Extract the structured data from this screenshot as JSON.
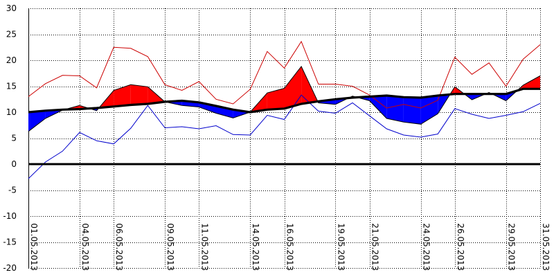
{
  "chart_data": {
    "type": "area",
    "title": "",
    "xlabel": "",
    "ylabel": "",
    "ylim": [
      -20,
      30
    ],
    "y_ticks": [
      -20,
      -15,
      -10,
      -5,
      0,
      5,
      10,
      15,
      20,
      25,
      30
    ],
    "grid": true,
    "zero_line": true,
    "x_tick_labels": [
      "01.05.2013",
      "04.05.2013",
      "06.05.2013",
      "09.05.2013",
      "11.05.2013",
      "14.05.2013",
      "16.05.2013",
      "19.05.2013",
      "21.05.2013",
      "24.05.2013",
      "26.05.2013",
      "29.05.2013",
      "31.05.2013"
    ],
    "x_tick_days": [
      1,
      4,
      6,
      9,
      11,
      14,
      16,
      19,
      21,
      24,
      26,
      29,
      31
    ],
    "days": [
      1,
      2,
      3,
      4,
      5,
      6,
      7,
      8,
      9,
      10,
      11,
      12,
      13,
      14,
      15,
      16,
      17,
      18,
      19,
      20,
      21,
      22,
      23,
      24,
      25,
      26,
      27,
      28,
      29,
      30,
      31
    ],
    "series": [
      {
        "role": "mean",
        "values": [
          6.3,
          8.8,
          10.4,
          11.3,
          10.3,
          14.2,
          15.3,
          14.9,
          12.0,
          11.3,
          11.0,
          9.8,
          8.9,
          10.0,
          13.7,
          14.6,
          18.8,
          11.8,
          11.5,
          13.1,
          12.2,
          8.8,
          8.1,
          7.7,
          9.7,
          14.9,
          12.4,
          13.8,
          12.2,
          15.2,
          17.0
        ]
      },
      {
        "role": "normal",
        "values": [
          10.0,
          10.3,
          10.5,
          10.6,
          10.8,
          11.1,
          11.4,
          11.6,
          12.0,
          12.2,
          11.9,
          11.2,
          10.5,
          10.0,
          10.5,
          10.7,
          11.6,
          12.1,
          12.5,
          12.8,
          13.0,
          13.2,
          12.9,
          12.8,
          13.2,
          13.5,
          13.5,
          13.5,
          13.5,
          14.5,
          14.5
        ]
      },
      {
        "role": "max",
        "color": "#cc0000",
        "values": [
          13.0,
          15.5,
          17.1,
          17.0,
          14.7,
          22.5,
          22.3,
          20.7,
          15.3,
          14.2,
          15.9,
          12.5,
          11.6,
          14.4,
          21.7,
          18.5,
          23.6,
          15.4,
          15.4,
          15.0,
          13.3,
          10.8,
          11.5,
          10.8,
          12.3,
          20.6,
          17.3,
          19.5,
          15.0,
          20.2,
          23.0
        ]
      },
      {
        "role": "min",
        "color": "#0000cc",
        "values": [
          -2.8,
          0.4,
          2.5,
          6.1,
          4.5,
          3.9,
          6.9,
          11.3,
          7.0,
          7.2,
          6.8,
          7.4,
          5.7,
          5.6,
          9.4,
          8.6,
          13.3,
          10.2,
          9.8,
          11.8,
          9.3,
          6.8,
          5.6,
          5.2,
          5.8,
          10.7,
          9.6,
          8.8,
          9.4,
          10.1,
          11.7
        ]
      }
    ],
    "colors": {
      "above_normal": "#ff0000",
      "below_normal": "#0000ff",
      "grid": "#000000",
      "axis": "#000000"
    }
  }
}
